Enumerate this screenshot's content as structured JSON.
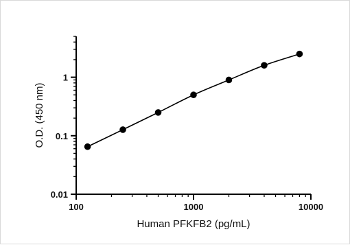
{
  "chart_data": {
    "type": "line",
    "title": "",
    "xlabel": "Human PFKFB2 (pg/mL)",
    "ylabel": "O.D. (450 nm)",
    "x_scale": "log",
    "y_scale": "log",
    "xlim": [
      100,
      10000
    ],
    "ylim": [
      0.01,
      5
    ],
    "x_ticks": [
      "100",
      "1000",
      "10000"
    ],
    "y_ticks": [
      "0.01",
      "0.1",
      "1"
    ],
    "grid": false,
    "legend": "none",
    "series": [
      {
        "x": [
          125,
          250,
          500,
          1000,
          2000,
          4000,
          8000
        ],
        "y": [
          0.065,
          0.127,
          0.25,
          0.5,
          0.9,
          1.6,
          2.5
        ],
        "color": "#000000"
      }
    ]
  }
}
